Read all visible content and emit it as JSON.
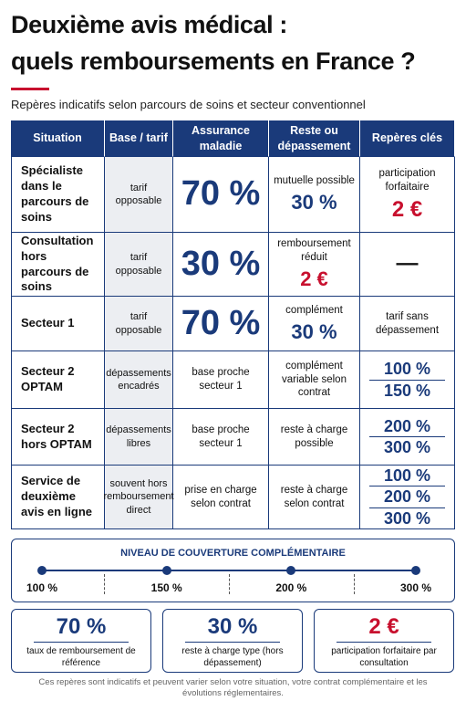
{
  "header": {
    "title_lines": [
      "Deuxième avis médical :",
      "quels remboursements en France ?"
    ],
    "subtitle": "Repères indicatifs selon parcours de soins et secteur conventionnel"
  },
  "table": {
    "columns": [
      "Situation",
      "Base / tarif",
      "Assurance maladie",
      "Reste ou dépassement",
      "Repères clés"
    ],
    "rows": [
      [
        {
          "text": "Spécialiste dans le parcours de soins"
        },
        {
          "text": "tarif opposable"
        },
        {
          "value": "70 %"
        },
        {
          "text": "mutuelle possible",
          "value": "30 %"
        },
        {
          "text": "participation forfaitaire",
          "value": "2 €",
          "value_color": "#c8102e"
        }
      ],
      [
        {
          "text": "Consultation hors parcours de soins"
        },
        {
          "text": "tarif opposable"
        },
        {
          "value": "30 %"
        },
        {
          "text": "remboursement réduit",
          "value": "2 €",
          "value_color": "#c8102e"
        },
        {
          "value": "—",
          "value_color": "#111111"
        }
      ],
      [
        {
          "text": "Secteur 1"
        },
        {
          "text": "tarif opposable"
        },
        {
          "value": "70 %"
        },
        {
          "text": "complément",
          "value": "30 %"
        },
        {
          "text": "tarif sans dépassement"
        }
      ],
      [
        {
          "text": "Secteur 2 OPTAM"
        },
        {
          "text": "dépassements encadrés"
        },
        {
          "text": "base proche secteur 1"
        },
        {
          "text": "complément variable selon contrat"
        },
        {
          "values": [
            "100 %",
            "150 %"
          ]
        }
      ],
      [
        {
          "text": "Secteur 2 hors OPTAM"
        },
        {
          "text": "dépassements libres"
        },
        {
          "text": "base proche secteur 1"
        },
        {
          "text": "reste à charge possible"
        },
        {
          "values": [
            "200 %",
            "300 %"
          ]
        }
      ],
      [
        {
          "text": "Service de deuxième avis en ligne"
        },
        {
          "text": "souvent hors remboursement direct"
        },
        {
          "text": "prise en charge selon contrat"
        },
        {
          "text": "reste à charge selon contrat"
        },
        {
          "values": [
            "100 %",
            "200 %",
            "300 %"
          ]
        }
      ]
    ]
  },
  "coverage": {
    "title": "NIVEAU DE COUVERTURE COMPLÉMENTAIRE",
    "levels": [
      "100 %",
      "150 %",
      "200 %",
      "300 %"
    ]
  },
  "highlights": [
    {
      "value": "70 %",
      "label": "taux de remboursement de référence"
    },
    {
      "value": "30 %",
      "label": "reste à charge type (hors dépassement)"
    },
    {
      "value": "2 €",
      "label": "participation forfaitaire par consultation",
      "value_color": "#c8102e"
    }
  ],
  "footer": "Ces repères sont indicatifs et peuvent varier selon votre situation, votre contrat complémentaire et les évolutions réglementaires."
}
